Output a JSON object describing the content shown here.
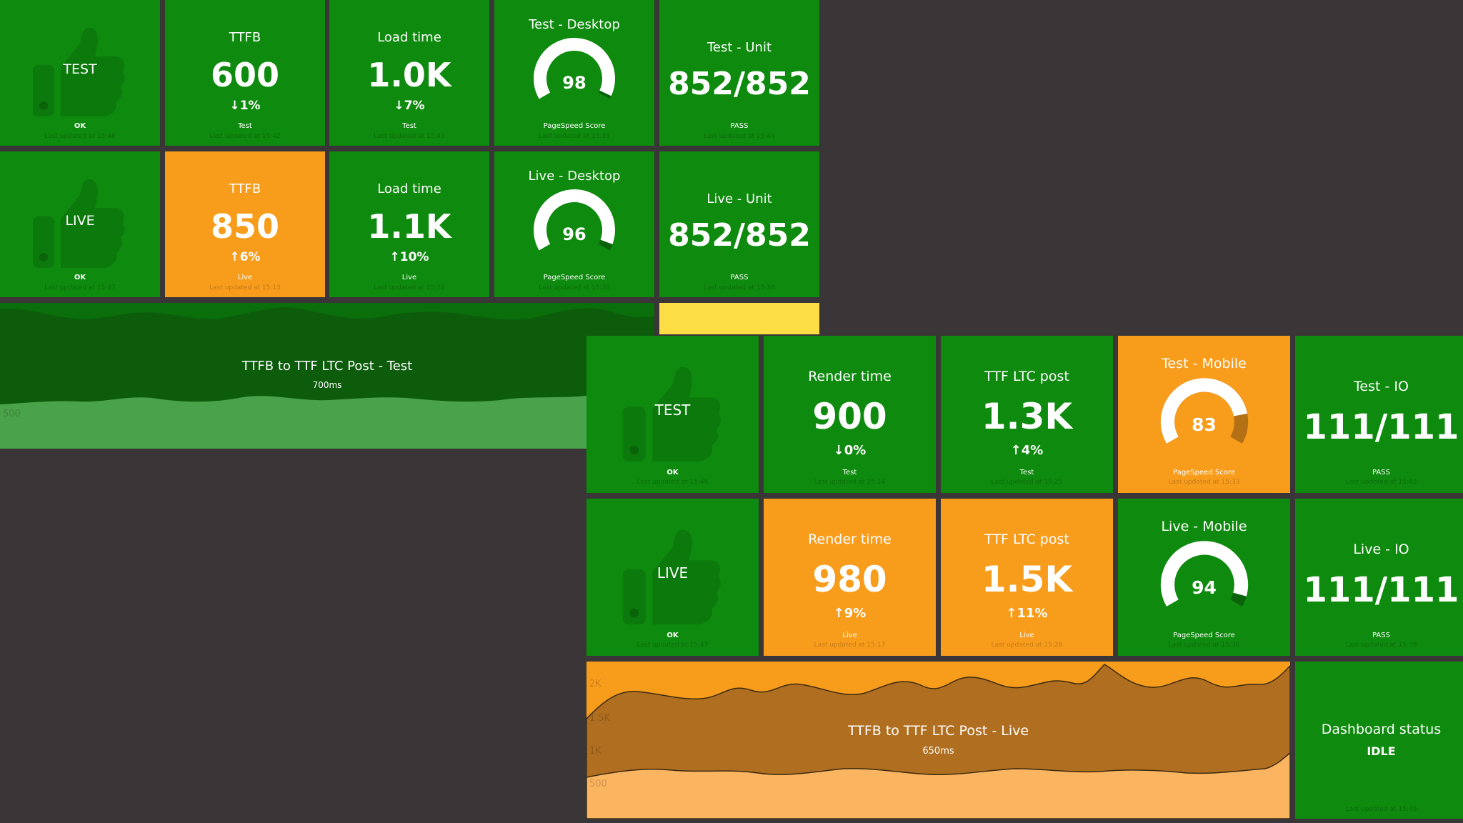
{
  "colors": {
    "green": "#0e8a0e",
    "orange": "#f89c1c",
    "yellow": "#fcdd45",
    "background": "#3a3536"
  },
  "dash1": {
    "status_test": {
      "label": "TEST",
      "status": "OK",
      "updated": "Last updated at 15:46",
      "icon": "thumbs-up-icon"
    },
    "ttfb_test": {
      "title": "TTFB",
      "value": "600",
      "arrow": "down",
      "change": "1%",
      "more": "Test",
      "updated": "Last updated at 15:42"
    },
    "load_test": {
      "title": "Load time",
      "value": "1.0K",
      "arrow": "down",
      "change": "7%",
      "more": "Test",
      "updated": "Last updated at 15:43"
    },
    "desk_test": {
      "title": "Test - Desktop",
      "value": "98",
      "score": 98,
      "more": "PageSpeed Score",
      "updated": "Last updated at 15:33"
    },
    "unit_test": {
      "title": "Test - Unit",
      "value": "852/852",
      "more": "PASS",
      "updated": "Last updated at 15:44"
    },
    "status_live": {
      "label": "LIVE",
      "status": "OK",
      "updated": "Last updated at 15:47",
      "icon": "thumbs-up-icon"
    },
    "ttfb_live": {
      "title": "TTFB",
      "value": "850",
      "arrow": "up",
      "change": "6%",
      "more": "Live",
      "updated": "Last updated at 15:13"
    },
    "load_live": {
      "title": "Load time",
      "value": "1.1K",
      "arrow": "up",
      "change": "10%",
      "more": "Live",
      "updated": "Last updated at 15:32"
    },
    "desk_live": {
      "title": "Live - Desktop",
      "value": "96",
      "score": 96,
      "more": "PageSpeed Score",
      "updated": "Last updated at 15:30"
    },
    "unit_live": {
      "title": "Live - Unit",
      "value": "852/852",
      "more": "PASS",
      "updated": "Last updated at 15:38"
    },
    "chart": {
      "title": "TTFB to TTF LTC Post - Test",
      "sub": "700ms",
      "tick": "500"
    }
  },
  "dash2": {
    "status_test": {
      "label": "TEST",
      "status": "OK",
      "updated": "Last updated at 15:46",
      "icon": "thumbs-up-icon"
    },
    "render_test": {
      "title": "Render time",
      "value": "900",
      "arrow": "down",
      "change": "0%",
      "more": "Test",
      "updated": "Last updated at 15:14"
    },
    "ttf_test": {
      "title": "TTF LTC post",
      "value": "1.3K",
      "arrow": "up",
      "change": "4%",
      "more": "Test",
      "updated": "Last updated at 15:25"
    },
    "mob_test": {
      "title": "Test - Mobile",
      "value": "83",
      "score": 83,
      "more": "PageSpeed Score",
      "updated": "Last updated at 15:33"
    },
    "io_test": {
      "title": "Test - IO",
      "value": "111/111",
      "more": "PASS",
      "updated": "Last updated at 15:43"
    },
    "status_live": {
      "label": "LIVE",
      "status": "OK",
      "updated": "Last updated at 15:47",
      "icon": "thumbs-up-icon"
    },
    "render_live": {
      "title": "Render time",
      "value": "980",
      "arrow": "up",
      "change": "9%",
      "more": "Live",
      "updated": "Last updated at 15:17"
    },
    "ttf_live": {
      "title": "TTF LTC post",
      "value": "1.5K",
      "arrow": "up",
      "change": "11%",
      "more": "Live",
      "updated": "Last updated at 15:28"
    },
    "mob_live": {
      "title": "Live - Mobile",
      "value": "94",
      "score": 94,
      "more": "PageSpeed Score",
      "updated": "Last updated at 15:30"
    },
    "io_live": {
      "title": "Live - IO",
      "value": "111/111",
      "more": "PASS",
      "updated": "Last updated at 15:39"
    },
    "chart": {
      "title": "TTFB to TTF LTC Post - Live",
      "sub": "650ms",
      "ticks": [
        "2K",
        "1.5K",
        "1K",
        "500"
      ]
    },
    "dash_status": {
      "title": "Dashboard status",
      "value": "IDLE",
      "updated": "Last updated at 15:49"
    }
  }
}
